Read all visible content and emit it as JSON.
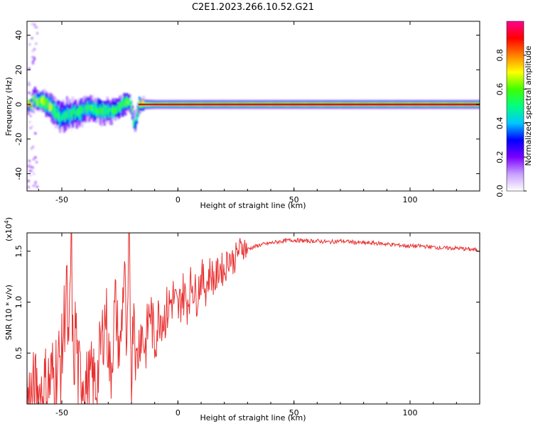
{
  "title": "C2E1.2023.266.10.52.G21",
  "colors": {
    "snr_line": "#e83030",
    "spectrogram_ridge": "#d01818",
    "frame": "#000000"
  },
  "chart_data": [
    {
      "type": "heatmap",
      "xlabel": "Height of straight line (km)",
      "ylabel": "Frequency (Hz)",
      "xlim": [
        -65,
        130
      ],
      "ylim": [
        -50,
        48
      ],
      "x_ticks": [
        "-50",
        "0",
        "50",
        "100"
      ],
      "y_ticks": [
        "40",
        "20",
        "0",
        "-20",
        "-40"
      ],
      "x_tick_values": [
        -50,
        0,
        50,
        100
      ],
      "y_tick_values": [
        40,
        20,
        0,
        -20,
        -40
      ],
      "colorbar": {
        "label": "Normalized spectral amplitude",
        "range": [
          0,
          1
        ],
        "ticks": [
          "0.0",
          "0.2",
          "0.4",
          "0.6",
          "0.8"
        ],
        "tick_values": [
          0,
          0.2,
          0.4,
          0.6,
          0.8
        ],
        "colormap": [
          "#ffffff",
          "#c8a0ff",
          "#7a00ff",
          "#0000ff",
          "#00c8ff",
          "#00ff80",
          "#40ff00",
          "#ffff00",
          "#ff8000",
          "#ff0000",
          "#ff0090"
        ]
      },
      "ridge": [
        {
          "x": -63,
          "y": 3,
          "spread": 5,
          "amp": 0.7
        },
        {
          "x": -60,
          "y": 2,
          "spread": 5,
          "amp": 0.75
        },
        {
          "x": -57,
          "y": 1,
          "spread": 6,
          "amp": 0.8
        },
        {
          "x": -54,
          "y": -3,
          "spread": 7,
          "amp": 0.7
        },
        {
          "x": -51,
          "y": -7,
          "spread": 8,
          "amp": 0.6
        },
        {
          "x": -48,
          "y": -6,
          "spread": 8,
          "amp": 0.6
        },
        {
          "x": -45,
          "y": -5,
          "spread": 7,
          "amp": 0.6
        },
        {
          "x": -42,
          "y": -4,
          "spread": 7,
          "amp": 0.6
        },
        {
          "x": -39,
          "y": -2,
          "spread": 6,
          "amp": 0.65
        },
        {
          "x": -36,
          "y": -3,
          "spread": 6,
          "amp": 0.65
        },
        {
          "x": -33,
          "y": -4,
          "spread": 6,
          "amp": 0.65
        },
        {
          "x": -30,
          "y": -4,
          "spread": 6,
          "amp": 0.6
        },
        {
          "x": -27,
          "y": -3,
          "spread": 5,
          "amp": 0.65
        },
        {
          "x": -24,
          "y": 0,
          "spread": 5,
          "amp": 0.7
        },
        {
          "x": -21,
          "y": 2,
          "spread": 4,
          "amp": 0.7
        },
        {
          "x": -19,
          "y": -12,
          "spread": 3,
          "amp": 0.55
        },
        {
          "x": -17,
          "y": 0,
          "spread": 3,
          "amp": 0.8
        },
        {
          "x": -10,
          "y": 0,
          "spread": 2.5,
          "amp": 0.9
        },
        {
          "x": 0,
          "y": 0,
          "spread": 2.5,
          "amp": 0.92
        },
        {
          "x": 20,
          "y": 0,
          "spread": 2.5,
          "amp": 0.95
        },
        {
          "x": 50,
          "y": 0,
          "spread": 2.5,
          "amp": 0.97
        },
        {
          "x": 80,
          "y": 0,
          "spread": 2.5,
          "amp": 0.97
        },
        {
          "x": 110,
          "y": 0,
          "spread": 2.5,
          "amp": 0.97
        },
        {
          "x": 130,
          "y": 0,
          "spread": 2.5,
          "amp": 0.97
        }
      ]
    },
    {
      "type": "line",
      "xlabel": "Height of straight line (km)",
      "ylabel": "SNR (10 * v/v)",
      "y_scale_label": "(x10",
      "y_scale_exp": "4",
      "y_scale_close": ")",
      "xlim": [
        -65,
        130
      ],
      "ylim": [
        0,
        1.68
      ],
      "x_ticks": [
        "-50",
        "0",
        "50",
        "100"
      ],
      "y_ticks": [
        "0.5",
        "1.0",
        "1.5"
      ],
      "x_tick_values": [
        -50,
        0,
        50,
        100
      ],
      "y_tick_values": [
        0.5,
        1.0,
        1.5
      ],
      "series": [
        {
          "x": [
            -65,
            -62,
            -59,
            -56,
            -53,
            -50,
            -48,
            -47,
            -46,
            -45,
            -44,
            -43,
            -41,
            -39,
            -37,
            -35,
            -33,
            -31,
            -29,
            -27,
            -25,
            -23,
            -22,
            -21,
            -20,
            -19,
            -18,
            -16,
            -14,
            -12,
            -10,
            -8,
            -6,
            -4,
            -2,
            0,
            2,
            4,
            6,
            8,
            10,
            12,
            14,
            16,
            18,
            20,
            22,
            24,
            26,
            28,
            30,
            35,
            40,
            45,
            50,
            55,
            60,
            65,
            70,
            75,
            80,
            85,
            90,
            95,
            100,
            105,
            110,
            115,
            120,
            125,
            130
          ],
          "y": [
            0.02,
            0.05,
            0.1,
            0.18,
            0.3,
            0.45,
            1.2,
            0.3,
            1.66,
            0.2,
            0.85,
            0.25,
            0.3,
            0.15,
            0.25,
            0.18,
            0.6,
            0.9,
            0.25,
            1.0,
            0.45,
            1.4,
            0.3,
            1.68,
            0.2,
            1.1,
            0.35,
            0.75,
            0.55,
            0.95,
            0.6,
            0.9,
            0.85,
            0.95,
            1.05,
            0.9,
            1.1,
            1.0,
            1.2,
            1.05,
            1.25,
            1.15,
            1.3,
            1.2,
            1.35,
            1.3,
            1.45,
            1.4,
            1.5,
            1.55,
            1.52,
            1.56,
            1.58,
            1.6,
            1.61,
            1.6,
            1.6,
            1.59,
            1.6,
            1.59,
            1.58,
            1.58,
            1.57,
            1.56,
            1.55,
            1.55,
            1.54,
            1.53,
            1.53,
            1.52,
            1.51
          ]
        }
      ]
    }
  ]
}
